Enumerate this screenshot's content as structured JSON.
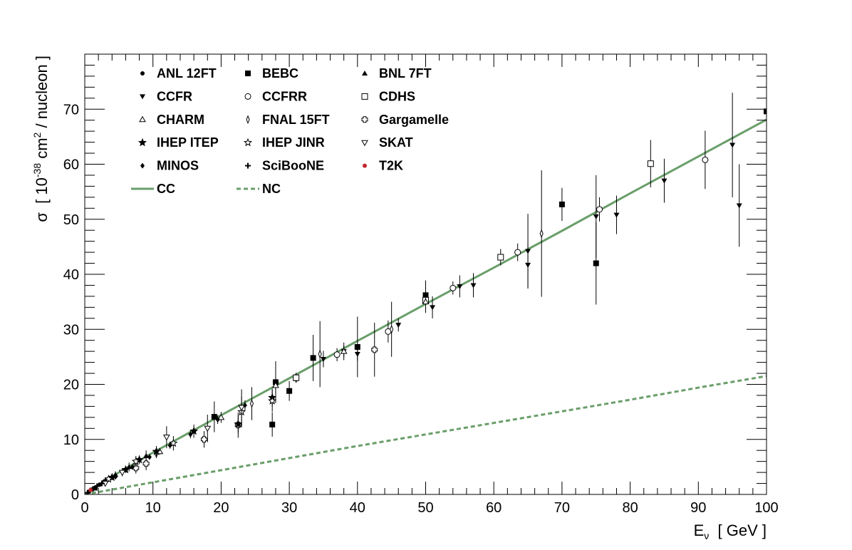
{
  "chart_data": {
    "type": "scatter",
    "xlabel": {
      "main": "E",
      "sub": "ν",
      "rest": "  [ GeV ]"
    },
    "ylabel": {
      "pre": "σ  [ 10",
      "sup": "-38",
      "post": " cm",
      "sup2": "2",
      "tail": " / nucleon ]"
    },
    "xlim": [
      0,
      100
    ],
    "ylim": [
      0,
      80
    ],
    "xticks": [
      0,
      10,
      20,
      30,
      40,
      50,
      60,
      70,
      80,
      90,
      100
    ],
    "yticks": [
      0,
      10,
      20,
      30,
      40,
      50,
      60,
      70
    ],
    "grid": false,
    "legend_position": "top-left",
    "legend": [
      {
        "name": "ANL 12FT",
        "marker": "circle-filled"
      },
      {
        "name": "BEBC",
        "marker": "square-filled"
      },
      {
        "name": "BNL 7FT",
        "marker": "triangle-up-filled"
      },
      {
        "name": "CCFR",
        "marker": "triangle-down-filled"
      },
      {
        "name": "CCFRR",
        "marker": "circle-open"
      },
      {
        "name": "CDHS",
        "marker": "square-open"
      },
      {
        "name": "CHARM",
        "marker": "triangle-up-open"
      },
      {
        "name": "FNAL 15FT",
        "marker": "diamond-open"
      },
      {
        "name": "Gargamelle",
        "marker": "cross-open"
      },
      {
        "name": "IHEP ITEP",
        "marker": "star-filled"
      },
      {
        "name": "IHEP JINR",
        "marker": "star-open"
      },
      {
        "name": "SKAT",
        "marker": "triangle-down-open"
      },
      {
        "name": "MINOS",
        "marker": "diamond-filled"
      },
      {
        "name": "SciBooNE",
        "marker": "plus"
      },
      {
        "name": "T2K",
        "marker": "circle-red"
      },
      {
        "name": "CC",
        "marker": "line-solid"
      },
      {
        "name": "NC",
        "marker": "line-dashed"
      }
    ],
    "curves": [
      {
        "name": "CC",
        "style": "solid",
        "color": "#6a9e6a",
        "x": [
          0,
          1,
          2,
          5,
          10,
          20,
          30,
          40,
          50,
          60,
          70,
          80,
          90,
          100
        ],
        "y": [
          0,
          0.9,
          1.7,
          4.0,
          7.6,
          14.4,
          21.1,
          27.9,
          34.6,
          41.2,
          47.9,
          54.7,
          61.4,
          68.1
        ]
      },
      {
        "name": "NC",
        "style": "dashed",
        "color": "#6a9e6a",
        "x": [
          0,
          10,
          20,
          30,
          40,
          50,
          60,
          70,
          80,
          90,
          100
        ],
        "y": [
          0,
          2.2,
          4.4,
          6.6,
          8.8,
          10.9,
          13.0,
          15.1,
          17.2,
          19.4,
          21.5
        ]
      }
    ],
    "series": [
      {
        "name": "ANL 12FT",
        "marker": "circle-filled",
        "points": [
          {
            "x": 0.6,
            "y": 0.5,
            "e": 0.2
          },
          {
            "x": 1.1,
            "y": 0.9,
            "e": 0.2
          },
          {
            "x": 1.6,
            "y": 1.3,
            "e": 0.3
          },
          {
            "x": 2.2,
            "y": 1.8,
            "e": 0.4
          },
          {
            "x": 2.8,
            "y": 2.3,
            "e": 0.5
          }
        ]
      },
      {
        "name": "BEBC",
        "marker": "square-filled",
        "points": [
          {
            "x": 19,
            "y": 14.1,
            "e": 2.8
          },
          {
            "x": 27.5,
            "y": 12.7,
            "e": 2.2
          },
          {
            "x": 28,
            "y": 20.4,
            "e": 3.8
          },
          {
            "x": 30,
            "y": 18.8,
            "e": 1.8
          },
          {
            "x": 33.5,
            "y": 24.8,
            "e": 4.2
          },
          {
            "x": 40,
            "y": 26.8,
            "e": 5.5
          },
          {
            "x": 50,
            "y": 36.2,
            "e": 2.7
          },
          {
            "x": 70,
            "y": 52.7,
            "e": 3.0
          },
          {
            "x": 75,
            "y": 42.0,
            "e": 7.5
          },
          {
            "x": 100,
            "y": 69.6,
            "e": 6.5
          }
        ]
      },
      {
        "name": "BNL 7FT",
        "marker": "triangle-up-filled",
        "points": [
          {
            "x": 1.5,
            "y": 1.1,
            "e": 0.3
          },
          {
            "x": 3.0,
            "y": 2.5,
            "e": 0.5
          },
          {
            "x": 4.5,
            "y": 3.6,
            "e": 0.6
          },
          {
            "x": 6.5,
            "y": 5.0,
            "e": 0.8
          },
          {
            "x": 9.0,
            "y": 7.0,
            "e": 1.0
          }
        ]
      },
      {
        "name": "CCFR",
        "marker": "triangle-down-filled",
        "points": [
          {
            "x": 35,
            "y": 24.6,
            "e": 1.5
          },
          {
            "x": 38,
            "y": 26.0,
            "e": 1.0
          },
          {
            "x": 40,
            "y": 25.5,
            "e": 1.2
          },
          {
            "x": 46,
            "y": 30.8,
            "e": 1.2
          },
          {
            "x": 51,
            "y": 34.0,
            "e": 2.0
          },
          {
            "x": 55,
            "y": 37.8,
            "e": 2.0
          },
          {
            "x": 57,
            "y": 38.0,
            "e": 2.2
          },
          {
            "x": 65,
            "y": 41.7,
            "e": 4.0
          },
          {
            "x": 65,
            "y": 44.2,
            "e": 6.8
          },
          {
            "x": 75,
            "y": 50.5,
            "e": 7.5
          },
          {
            "x": 78,
            "y": 50.8,
            "e": 3.5
          },
          {
            "x": 85,
            "y": 57.0,
            "e": 4.0
          },
          {
            "x": 95,
            "y": 63.5,
            "e": 9.5
          },
          {
            "x": 96,
            "y": 52.5,
            "e": 7.5
          }
        ]
      },
      {
        "name": "CCFRR",
        "marker": "circle-open",
        "points": [
          {
            "x": 31,
            "y": 21.1,
            "e": 0.8
          },
          {
            "x": 37,
            "y": 25.4,
            "e": 1.2
          },
          {
            "x": 44.5,
            "y": 29.6,
            "e": 2.0
          },
          {
            "x": 54,
            "y": 37.5,
            "e": 1.2
          },
          {
            "x": 63.5,
            "y": 44.0,
            "e": 1.6
          },
          {
            "x": 75.5,
            "y": 51.8,
            "e": 2.2
          },
          {
            "x": 91,
            "y": 60.8,
            "e": 5.3
          }
        ]
      },
      {
        "name": "CDHS",
        "marker": "square-open",
        "points": [
          {
            "x": 31,
            "y": 21.2,
            "e": 0.9
          },
          {
            "x": 50,
            "y": 35.3,
            "e": 2.0
          },
          {
            "x": 61,
            "y": 43.1,
            "e": 1.5
          },
          {
            "x": 83,
            "y": 60.1,
            "e": 4.3
          }
        ]
      },
      {
        "name": "CHARM",
        "marker": "triangle-up-open",
        "points": [
          {
            "x": 11,
            "y": 7.8,
            "e": 0.6
          },
          {
            "x": 20,
            "y": 14.0,
            "e": 1.0
          },
          {
            "x": 28,
            "y": 19.8,
            "e": 1.4
          },
          {
            "x": 38,
            "y": 26.0,
            "e": 1.6
          },
          {
            "x": 50,
            "y": 35.0,
            "e": 2.0
          }
        ]
      },
      {
        "name": "FNAL 15FT",
        "marker": "diamond-open",
        "points": [
          {
            "x": 10.5,
            "y": 7.4,
            "e": 0.8
          },
          {
            "x": 24.5,
            "y": 16.5,
            "e": 3.0
          },
          {
            "x": 34.5,
            "y": 25.5,
            "e": 6.0
          },
          {
            "x": 45,
            "y": 30.0,
            "e": 5.0
          },
          {
            "x": 67,
            "y": 47.4,
            "e": 11.5
          }
        ]
      },
      {
        "name": "Gargamelle",
        "marker": "cross-open",
        "points": [
          {
            "x": 7.5,
            "y": 4.8,
            "e": 1.0
          },
          {
            "x": 9.0,
            "y": 5.6,
            "e": 1.2
          },
          {
            "x": 17.5,
            "y": 10.0,
            "e": 1.5
          },
          {
            "x": 22.5,
            "y": 12.6,
            "e": 2.3
          },
          {
            "x": 42.5,
            "y": 26.3,
            "e": 4.9
          }
        ]
      },
      {
        "name": "IHEP ITEP",
        "marker": "star-filled",
        "points": [
          {
            "x": 4.0,
            "y": 3.1,
            "e": 0.5
          },
          {
            "x": 6.0,
            "y": 4.5,
            "e": 0.6
          },
          {
            "x": 8.0,
            "y": 6.3,
            "e": 0.8
          },
          {
            "x": 10.5,
            "y": 7.8,
            "e": 1.0
          },
          {
            "x": 16.0,
            "y": 11.5,
            "e": 1.2
          },
          {
            "x": 22.5,
            "y": 12.8,
            "e": 1.6
          },
          {
            "x": 27.5,
            "y": 17.6,
            "e": 1.6
          }
        ]
      },
      {
        "name": "IHEP JINR",
        "marker": "star-open",
        "points": [
          {
            "x": 3.5,
            "y": 2.8,
            "e": 0.5
          },
          {
            "x": 7.5,
            "y": 6.0,
            "e": 1.0
          },
          {
            "x": 13.0,
            "y": 9.3,
            "e": 1.3
          },
          {
            "x": 23.0,
            "y": 15.0,
            "e": 2.8
          },
          {
            "x": 27.5,
            "y": 17.0,
            "e": 2.0
          }
        ]
      },
      {
        "name": "SKAT",
        "marker": "triangle-down-open",
        "points": [
          {
            "x": 3.0,
            "y": 2.0,
            "e": 0.5
          },
          {
            "x": 5.5,
            "y": 4.0,
            "e": 0.7
          },
          {
            "x": 12.0,
            "y": 10.4,
            "e": 2.0
          },
          {
            "x": 18.0,
            "y": 12.0,
            "e": 2.5
          },
          {
            "x": 23.0,
            "y": 15.8,
            "e": 3.3
          }
        ]
      },
      {
        "name": "MINOS",
        "marker": "diamond-filled",
        "points": [
          {
            "x": 4.5,
            "y": 3.2,
            "e": 0.3
          },
          {
            "x": 7.0,
            "y": 5.0,
            "e": 0.4
          },
          {
            "x": 9.5,
            "y": 6.8,
            "e": 0.5
          },
          {
            "x": 12.5,
            "y": 8.9,
            "e": 0.6
          },
          {
            "x": 15.5,
            "y": 10.9,
            "e": 0.7
          },
          {
            "x": 19.5,
            "y": 13.6,
            "e": 0.8
          },
          {
            "x": 23.5,
            "y": 16.2,
            "e": 0.9
          }
        ]
      },
      {
        "name": "SciBooNE",
        "marker": "plus",
        "points": [
          {
            "x": 0.4,
            "y": 0.3,
            "e": 0.1
          },
          {
            "x": 0.8,
            "y": 0.7,
            "e": 0.1
          },
          {
            "x": 1.2,
            "y": 1.0,
            "e": 0.15
          },
          {
            "x": 1.8,
            "y": 1.5,
            "e": 0.2
          },
          {
            "x": 2.5,
            "y": 2.0,
            "e": 0.25
          }
        ]
      },
      {
        "name": "T2K",
        "marker": "circle-red",
        "points": [
          {
            "x": 0.85,
            "y": 0.8,
            "e": 0.15
          }
        ]
      }
    ]
  }
}
